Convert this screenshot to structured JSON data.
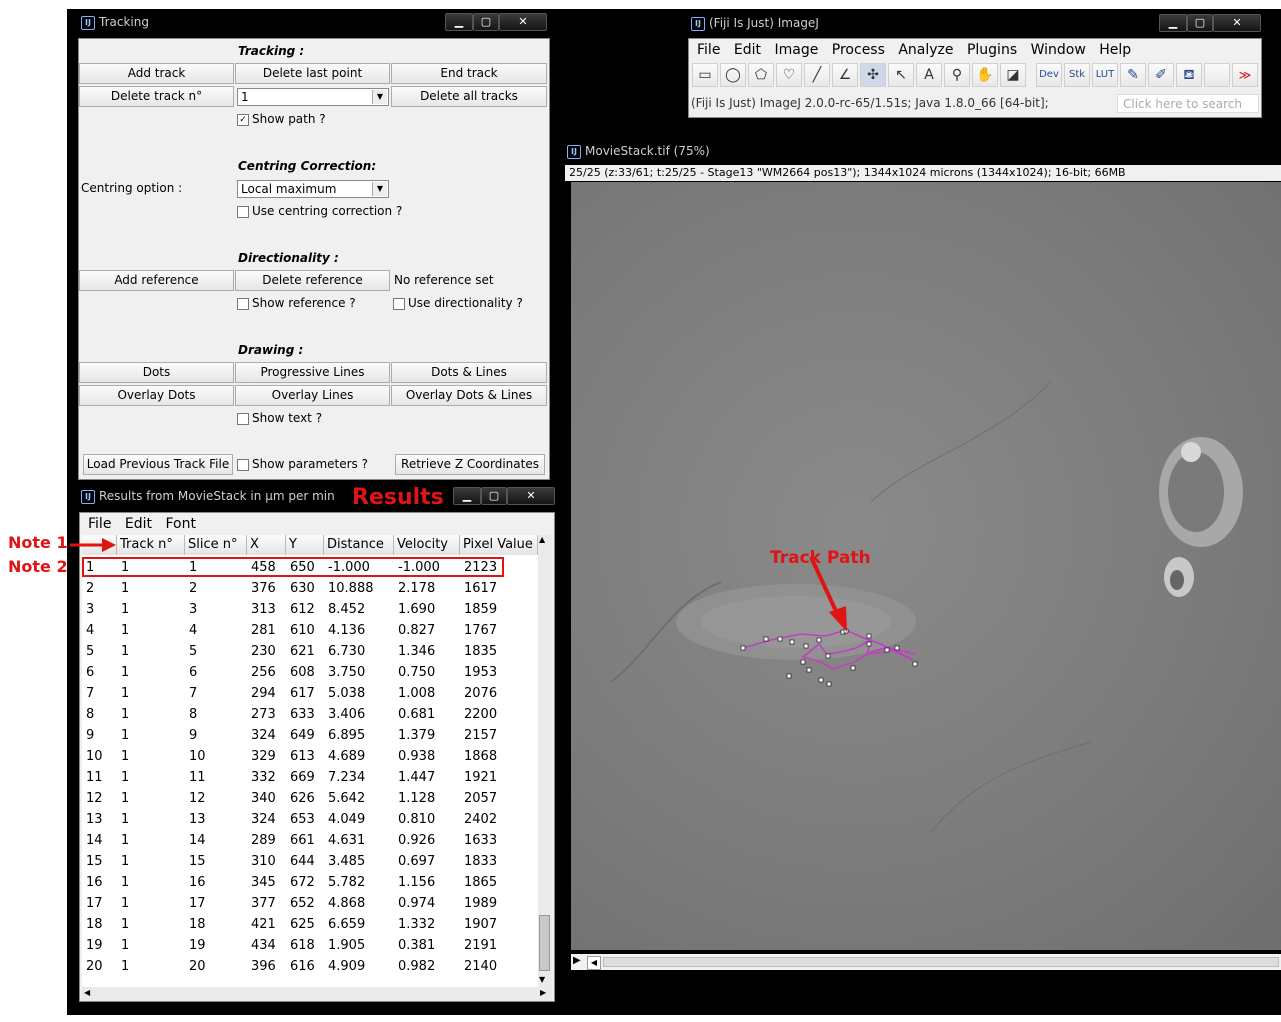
{
  "tracking": {
    "title": "Tracking",
    "section_tracking": "Tracking :",
    "add_track": "Add track",
    "delete_last_point": "Delete last point",
    "end_track": "End track",
    "delete_track_n": "Delete track n°",
    "track_select_value": "1",
    "delete_all_tracks": "Delete all tracks",
    "show_path": "Show path ?",
    "section_centring": "Centring Correction:",
    "centring_option_label": "Centring option :",
    "centring_option_value": "Local maximum",
    "use_centring": "Use centring correction ?",
    "section_directionality": "Directionality :",
    "add_reference": "Add reference",
    "delete_reference": "Delete reference",
    "no_reference": "No reference set",
    "show_reference": "Show reference ?",
    "use_directionality": "Use directionality ?",
    "section_drawing": "Drawing :",
    "dots": "Dots",
    "progressive_lines": "Progressive Lines",
    "dots_lines": "Dots & Lines",
    "overlay_dots": "Overlay Dots",
    "overlay_lines": "Overlay Lines",
    "overlay_dots_lines": "Overlay Dots & Lines",
    "show_text": "Show text ?",
    "load_previous": "Load Previous Track File",
    "show_parameters": "Show parameters ?",
    "retrieve_z": "Retrieve Z Coordinates"
  },
  "imagej": {
    "title": "(Fiji Is Just) ImageJ",
    "menu": [
      "File",
      "Edit",
      "Image",
      "Process",
      "Analyze",
      "Plugins",
      "Window",
      "Help"
    ],
    "tools": [
      "rectangle-icon",
      "oval-icon",
      "polygon-icon",
      "freehand-icon",
      "line-icon",
      "angle-icon",
      "multipoint-icon",
      "wand-icon",
      "text-icon",
      "magnifier-icon",
      "hand-icon",
      "color-picker-icon",
      "dev-icon",
      "stk-icon",
      "lut-icon",
      "pencil-icon",
      "brush-icon",
      "flood-fill-icon",
      "more-tools-icon"
    ],
    "tool_dev": "Dev",
    "tool_stk": "Stk",
    "tool_lut": "LUT",
    "status": "(Fiji Is Just) ImageJ 2.0.0-rc-65/1.51s; Java 1.8.0_66 [64-bit];",
    "search_placeholder": "Click here to search"
  },
  "movie": {
    "title": "MovieStack.tif (75%)",
    "info": "25/25 (z:33/61; t:25/25 - Stage13 \"WM2664 pos13\"); 1344x1024 microns (1344x1024); 16-bit; 66MB"
  },
  "results": {
    "title": "Results from MovieStack in µm per min",
    "menu": [
      "File",
      "Edit",
      "Font"
    ],
    "columns": [
      "",
      "Track n°",
      "Slice n°",
      "X",
      "Y",
      "Distance",
      "Velocity",
      "Pixel Value"
    ],
    "rows": [
      [
        "1",
        "1",
        "1",
        "458",
        "650",
        "-1.000",
        "-1.000",
        "2123"
      ],
      [
        "2",
        "1",
        "2",
        "376",
        "630",
        "10.888",
        "2.178",
        "1617"
      ],
      [
        "3",
        "1",
        "3",
        "313",
        "612",
        "8.452",
        "1.690",
        "1859"
      ],
      [
        "4",
        "1",
        "4",
        "281",
        "610",
        "4.136",
        "0.827",
        "1767"
      ],
      [
        "5",
        "1",
        "5",
        "230",
        "621",
        "6.730",
        "1.346",
        "1835"
      ],
      [
        "6",
        "1",
        "6",
        "256",
        "608",
        "3.750",
        "0.750",
        "1953"
      ],
      [
        "7",
        "1",
        "7",
        "294",
        "617",
        "5.038",
        "1.008",
        "2076"
      ],
      [
        "8",
        "1",
        "8",
        "273",
        "633",
        "3.406",
        "0.681",
        "2200"
      ],
      [
        "9",
        "1",
        "9",
        "324",
        "649",
        "6.895",
        "1.379",
        "2157"
      ],
      [
        "10",
        "1",
        "10",
        "329",
        "613",
        "4.689",
        "0.938",
        "1868"
      ],
      [
        "11",
        "1",
        "11",
        "332",
        "669",
        "7.234",
        "1.447",
        "1921"
      ],
      [
        "12",
        "1",
        "12",
        "340",
        "626",
        "5.642",
        "1.128",
        "2057"
      ],
      [
        "13",
        "1",
        "13",
        "324",
        "653",
        "4.049",
        "0.810",
        "2402"
      ],
      [
        "14",
        "1",
        "14",
        "289",
        "661",
        "4.631",
        "0.926",
        "1633"
      ],
      [
        "15",
        "1",
        "15",
        "310",
        "644",
        "3.485",
        "0.697",
        "1833"
      ],
      [
        "16",
        "1",
        "16",
        "345",
        "672",
        "5.782",
        "1.156",
        "1865"
      ],
      [
        "17",
        "1",
        "17",
        "377",
        "652",
        "4.868",
        "0.974",
        "1989"
      ],
      [
        "18",
        "1",
        "18",
        "421",
        "625",
        "6.659",
        "1.332",
        "1907"
      ],
      [
        "19",
        "1",
        "19",
        "434",
        "618",
        "1.905",
        "0.381",
        "2191"
      ],
      [
        "20",
        "1",
        "20",
        "396",
        "616",
        "4.909",
        "0.982",
        "2140"
      ]
    ]
  },
  "annotations": {
    "results_label": "Results",
    "note1": "Note 1",
    "note2": "Note 2",
    "track_path": "Track Path"
  },
  "colors": {
    "annotation_red": "#e01414",
    "track_magenta": "#c040c0"
  }
}
